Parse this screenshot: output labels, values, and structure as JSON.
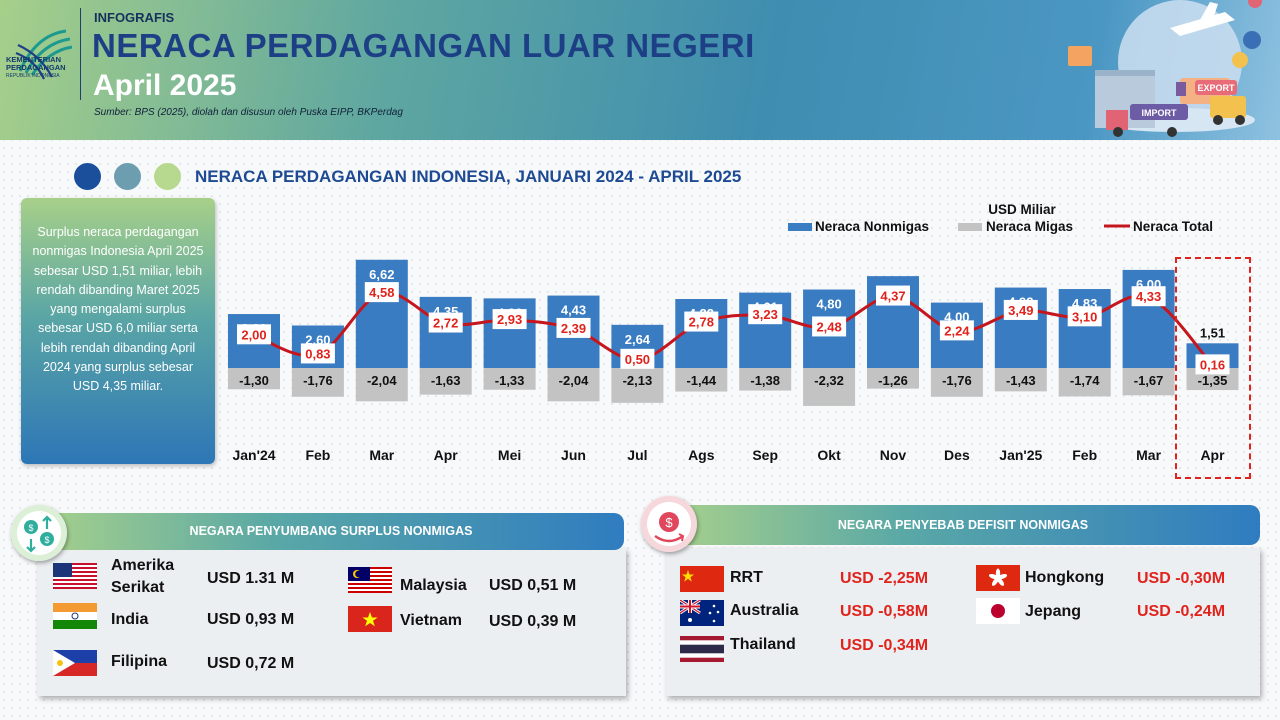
{
  "header": {
    "kicker": "INFOGRAFIS",
    "title": "NERACA PERDAGANGAN LUAR NEGERI",
    "month": "April 2025",
    "source": "Sumber: BPS (2025), diolah dan disusun oleh Puska EIPP, BKPerdag",
    "logo_line1": "KEMENTERIAN",
    "logo_line2": "PERDAGANGAN",
    "logo_line3": "REPUBLIK INDONESIA",
    "badge_export": "EXPORT",
    "badge_import": "IMPORT"
  },
  "section_title": "NERACA PERDAGANGAN INDONESIA, JANUARI 2024 - APRIL 2025",
  "summary_text": "Surplus neraca perdagangan nonmigas Indonesia April 2025 sebesar USD 1,51 miliar, lebih rendah dibanding Maret 2025 yang mengalami surplus sebesar USD 6,0 miliar serta lebih rendah dibanding April 2024 yang surplus sebesar USD 4,35 miliar.",
  "colors": {
    "nonmigas": "#3a7cc2",
    "migas": "#c3c3c3",
    "total": "#c4161c",
    "highlight": "#e0231c"
  },
  "chart_data": {
    "type": "bar",
    "unit": "USD Miliar",
    "categories": [
      "Jan'24",
      "Feb",
      "Mar",
      "Apr",
      "Mei",
      "Jun",
      "Jul",
      "Ags",
      "Sep",
      "Okt",
      "Nov",
      "Des",
      "Jan'25",
      "Feb",
      "Mar",
      "Apr"
    ],
    "series": [
      {
        "name": "Neraca Nonmigas",
        "type": "bar",
        "values": [
          3.3,
          2.6,
          6.62,
          4.35,
          4.26,
          4.43,
          2.64,
          4.22,
          4.61,
          4.8,
          5.62,
          4.0,
          4.92,
          4.83,
          6.0,
          1.51
        ],
        "labels": [
          "3,30",
          "2,60",
          "6,62",
          "4,35",
          "4,26",
          "4,43",
          "2,64",
          "4,22",
          "4,61",
          "4,80",
          "5,62",
          "4,00",
          "4,92",
          "4,83",
          "6,00",
          "1,51"
        ]
      },
      {
        "name": "Neraca Migas",
        "type": "bar",
        "values": [
          -1.3,
          -1.76,
          -2.04,
          -1.63,
          -1.33,
          -2.04,
          -2.13,
          -1.44,
          -1.38,
          -2.32,
          -1.26,
          -1.76,
          -1.43,
          -1.74,
          -1.67,
          -1.35
        ],
        "labels": [
          "-1,30",
          "-1,76",
          "-2,04",
          "-1,63",
          "-1,33",
          "-2,04",
          "-2,13",
          "-1,44",
          "-1,38",
          "-2,32",
          "-1,26",
          "-1,76",
          "-1,43",
          "-1,74",
          "-1,67",
          "-1,35"
        ]
      },
      {
        "name": "Neraca Total",
        "type": "line",
        "values": [
          2.0,
          0.83,
          4.58,
          2.72,
          2.93,
          2.39,
          0.5,
          2.78,
          3.23,
          2.48,
          4.37,
          2.24,
          3.49,
          3.1,
          4.33,
          0.16
        ],
        "labels": [
          "2,00",
          "0,83",
          "4,58",
          "2,72",
          "2,93",
          "2,39",
          "0,50",
          "2,78",
          "3,23",
          "2,48",
          "4,37",
          "2,24",
          "3,49",
          "3,10",
          "4,33",
          "0,16"
        ]
      }
    ],
    "legend_position": "top-right",
    "highlighted_category": "Apr"
  },
  "surplus": {
    "title": "NEGARA PENYUMBANG SURPLUS NONMIGAS",
    "items": [
      {
        "country": "Amerika Serikat",
        "value": "USD  1.31  M",
        "flag": "us-flag"
      },
      {
        "country": "India",
        "value": "USD  0,93  M",
        "flag": "india-flag"
      },
      {
        "country": "Filipina",
        "value": "USD  0,72  M",
        "flag": "philippines-flag"
      },
      {
        "country": "Malaysia",
        "value": "USD   0,51  M",
        "flag": "malaysia-flag"
      },
      {
        "country": "Vietnam",
        "value": "USD   0,39  M",
        "flag": "vietnam-flag"
      }
    ]
  },
  "deficit": {
    "title": "NEGARA PENYEBAB DEFISIT NONMIGAS",
    "items": [
      {
        "country": "RRT",
        "value": "USD  -2,25M",
        "flag": "china-flag"
      },
      {
        "country": "Australia",
        "value": "USD  -0,58M",
        "flag": "australia-flag"
      },
      {
        "country": "Thailand",
        "value": "USD  -0,34M",
        "flag": "thailand-flag"
      },
      {
        "country": "Hongkong",
        "value": "USD  -0,30M",
        "flag": "hongkong-flag"
      },
      {
        "country": "Jepang",
        "value": "USD  -0,24M",
        "flag": "japan-flag"
      }
    ]
  }
}
